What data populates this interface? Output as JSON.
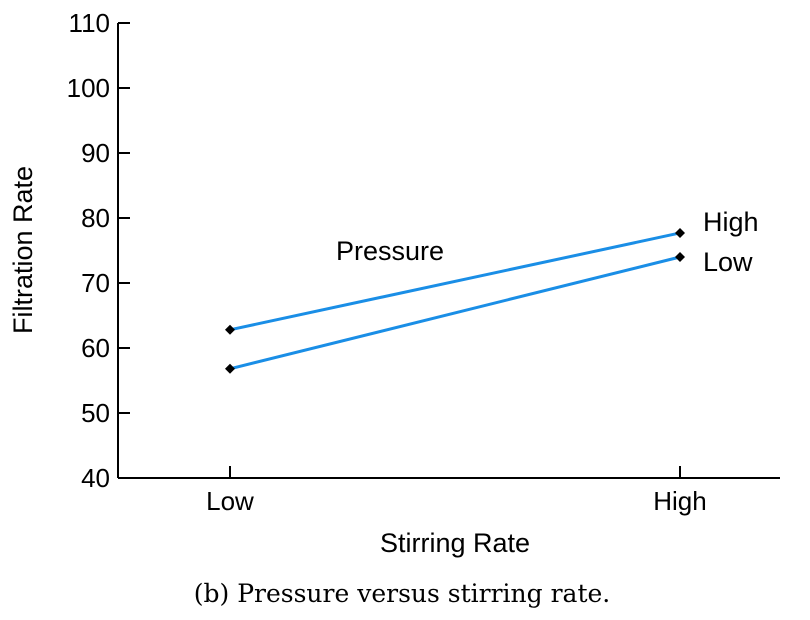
{
  "chart_data": {
    "type": "line",
    "categories": [
      "Low",
      "High"
    ],
    "series": [
      {
        "name": "High",
        "values": [
          62.8,
          77.7
        ]
      },
      {
        "name": "Low",
        "values": [
          56.8,
          74.0
        ]
      }
    ],
    "xlabel": "Stirring Rate",
    "ylabel": "Filtration Rate",
    "ylim": [
      40,
      110
    ],
    "yticks": [
      40,
      50,
      60,
      70,
      80,
      90,
      100,
      110
    ],
    "legend_title": "Pressure",
    "legend_placement": "right",
    "grid": false,
    "colors": {
      "line": "#1a8ee6",
      "marker": "#000000"
    },
    "marker": "diamond"
  },
  "caption": "(b) Pressure versus stirring rate."
}
